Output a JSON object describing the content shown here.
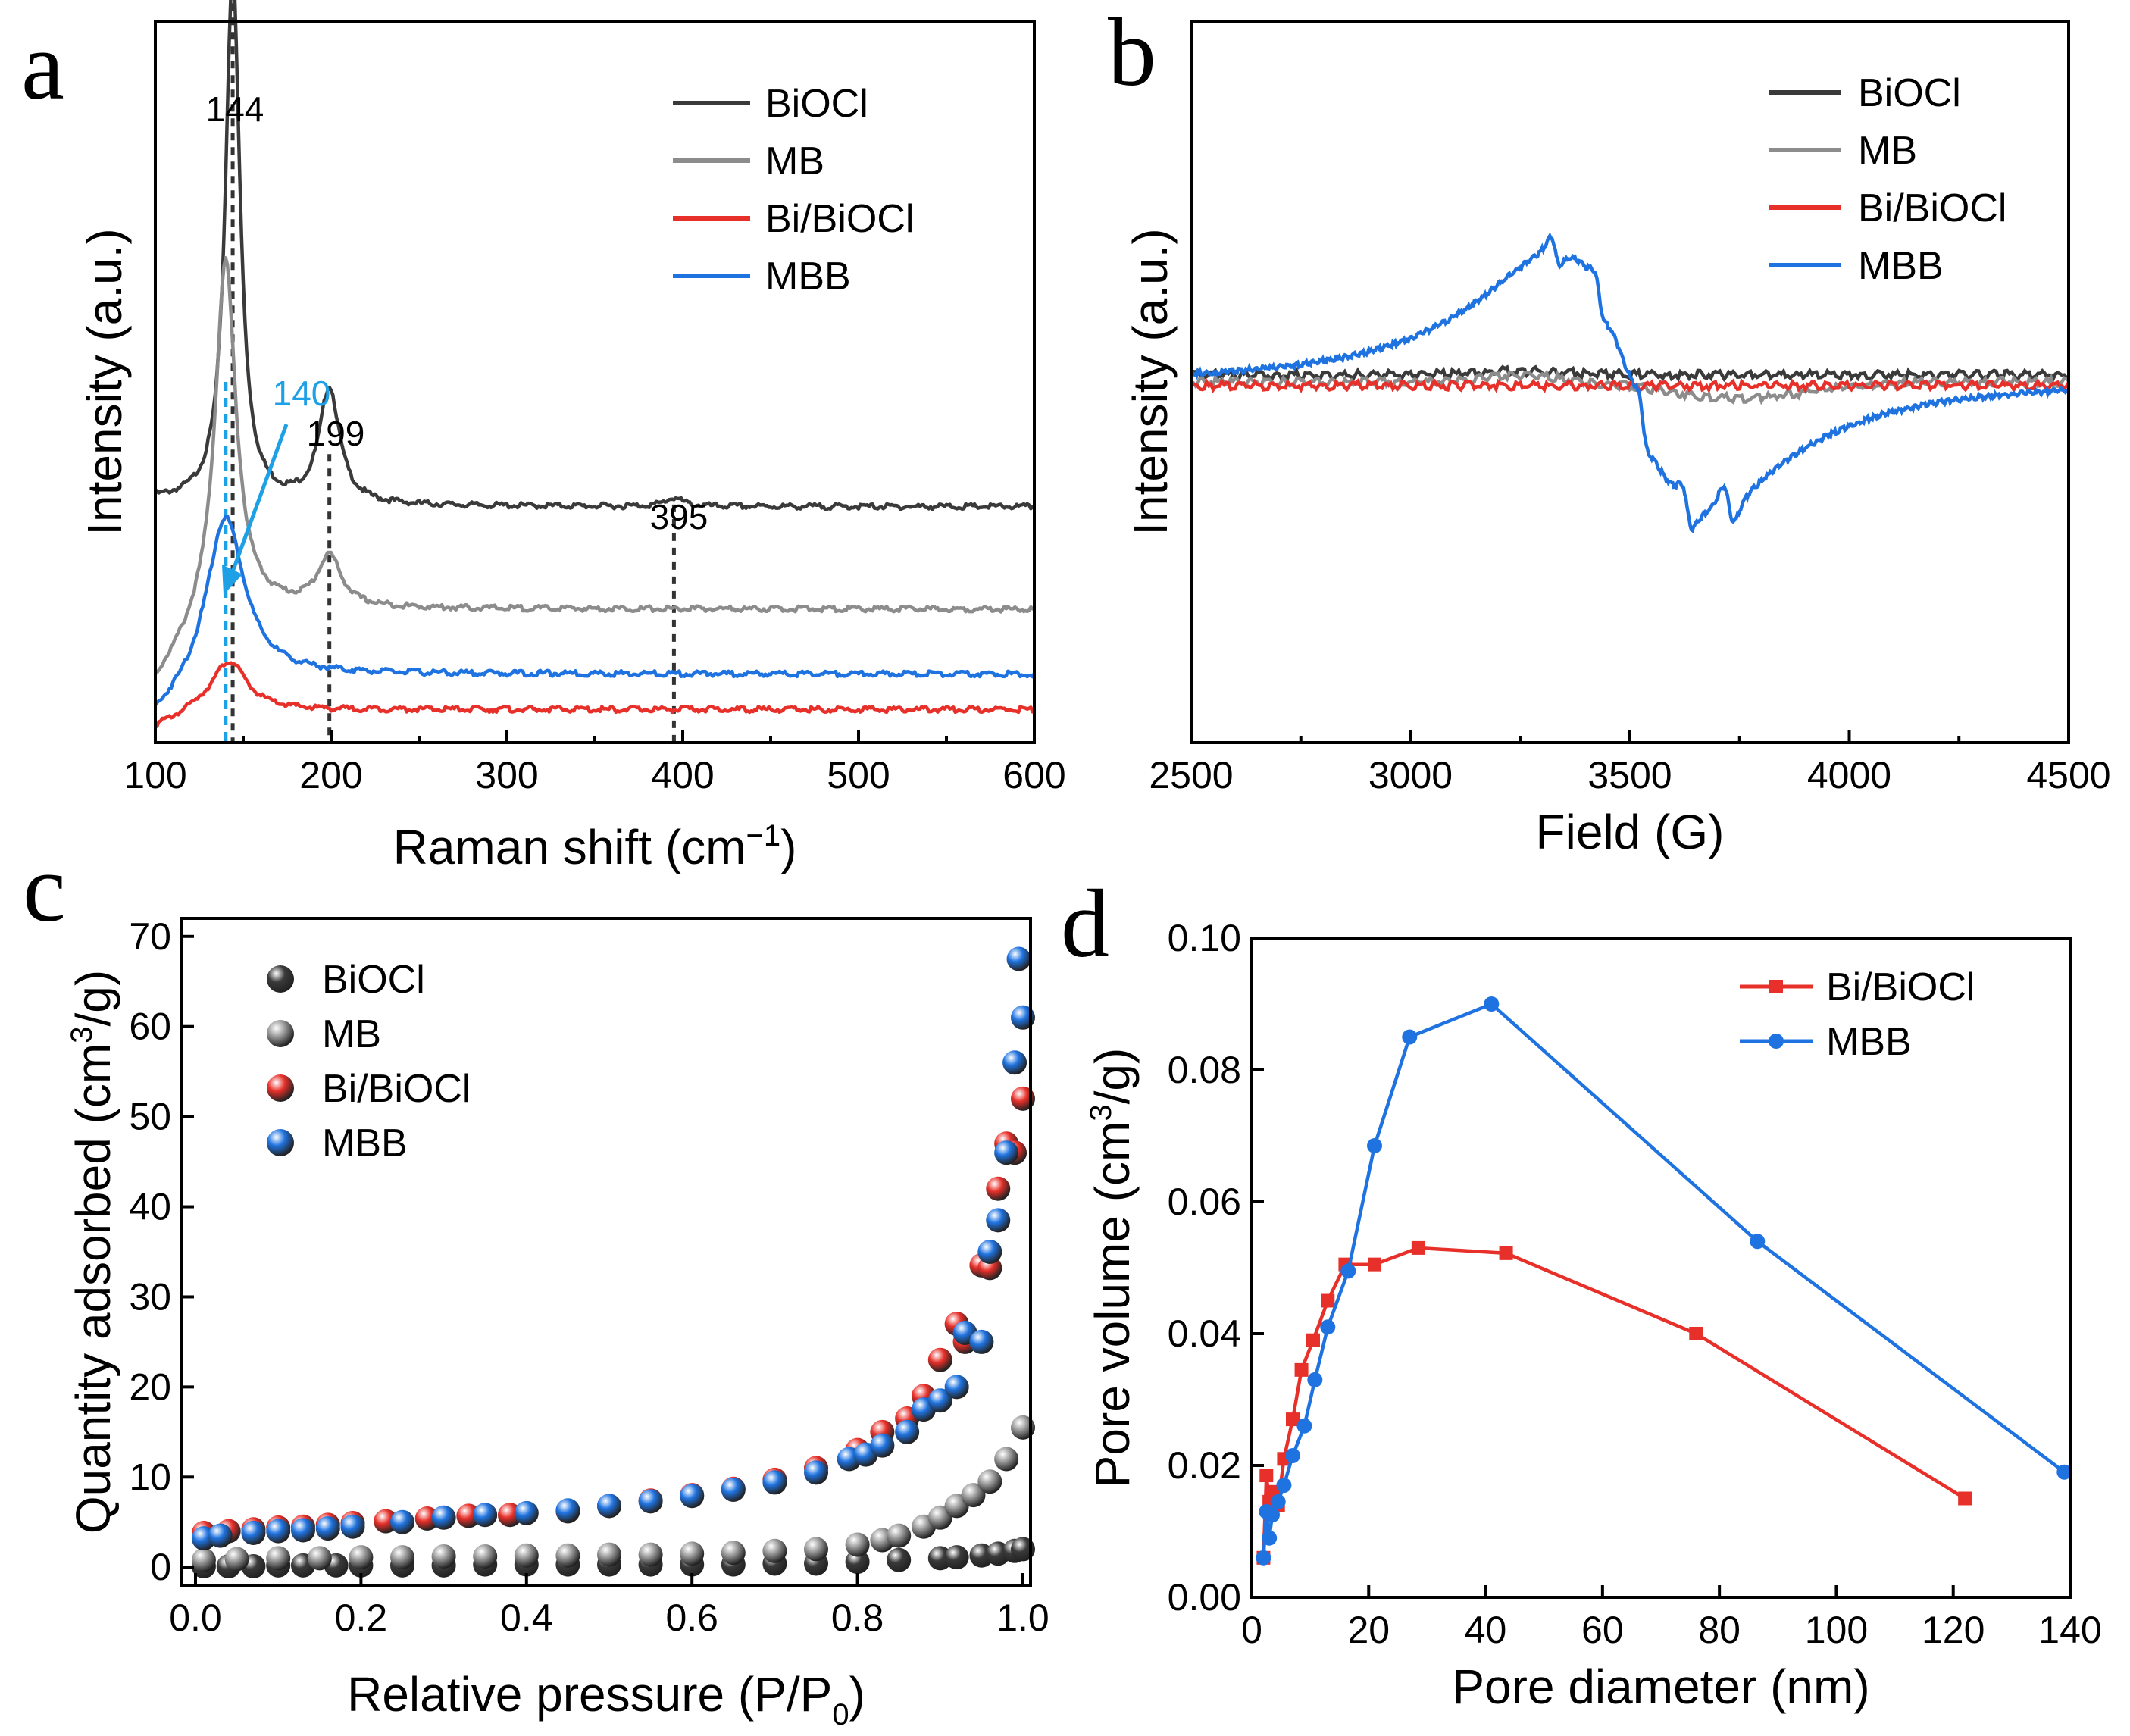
{
  "figure": {
    "panels": [
      "a",
      "b",
      "c",
      "d"
    ]
  },
  "chart_data": [
    {
      "id": "a",
      "type": "line",
      "xlabel": "Raman shift (cm",
      "xlabel_sup": "−1",
      "xlabel_end": ")",
      "ylabel": "Intensity (a.u.)",
      "xlim": [
        100,
        600
      ],
      "xticks": [
        100,
        200,
        300,
        400,
        500,
        600
      ],
      "ylim": [
        0,
        1
      ],
      "legend_position": "top-right",
      "series": [
        {
          "name": "BiOCl",
          "color": "#3a3a3a",
          "baseline": 0.335,
          "tail": 0.327,
          "peaks": [
            {
              "x": 144,
              "amp": 0.74,
              "w": 5
            },
            {
              "x": 199,
              "amp": 0.16,
              "w": 7
            },
            {
              "x": 395,
              "amp": 0.012,
              "w": 6
            }
          ]
        },
        {
          "name": "MB",
          "color": "#8c8c8c",
          "baseline": 0.19,
          "tail": 0.185,
          "peaks": [
            {
              "x": 140,
              "amp": 0.48,
              "w": 7
            },
            {
              "x": 199,
              "amp": 0.07,
              "w": 8
            }
          ]
        },
        {
          "name": "Bi/BiOCl",
          "color": "#e8302a",
          "baseline": 0.04,
          "tail": 0.046,
          "peaks": [
            {
              "x": 142,
              "amp": 0.07,
              "w": 12
            }
          ]
        },
        {
          "name": "MBB",
          "color": "#1f73e0",
          "baseline": 0.09,
          "tail": 0.095,
          "peaks": [
            {
              "x": 140,
              "amp": 0.22,
              "w": 13
            }
          ]
        }
      ],
      "annotations": [
        {
          "text": "144",
          "x": 144,
          "color": "#000000"
        },
        {
          "text": "140",
          "x": 140,
          "color": "#1ea0e6"
        },
        {
          "text": "199",
          "x": 199,
          "color": "#000000"
        },
        {
          "text": "395",
          "x": 395,
          "color": "#000000"
        }
      ]
    },
    {
      "id": "b",
      "type": "line",
      "xlabel": "Field (G)",
      "ylabel": "Intensity (a.u.)",
      "xlim": [
        2500,
        4500
      ],
      "xticks": [
        2500,
        3000,
        3500,
        4000,
        4500
      ],
      "ylim": [
        -1,
        1
      ],
      "legend_position": "top-right",
      "series": [
        {
          "name": "BiOCl",
          "color": "#3a3a3a",
          "level": 0.02
        },
        {
          "name": "MB",
          "color": "#8c8c8c",
          "level": 0.0
        },
        {
          "name": "Bi/BiOCl",
          "color": "#e8302a",
          "level": -0.01
        },
        {
          "name": "MBB",
          "color": "#1f73e0",
          "level": 0.0
        }
      ]
    },
    {
      "id": "c",
      "type": "scatter",
      "xlabel": "Relative pressure (P/P",
      "xlabel_sub": "0",
      "xlabel_end": ")",
      "ylabel": "Quantity adsorbed (cm",
      "ylabel_sup": "3",
      "ylabel_end": "/g)",
      "xlim": [
        0.0,
        1.0
      ],
      "xticks": [
        0.0,
        0.2,
        0.4,
        0.6,
        0.8,
        1.0
      ],
      "xtick_labels": [
        "0.0",
        "0.2",
        "0.4",
        "0.6",
        "0.8",
        "1.0"
      ],
      "ylim": [
        -2,
        72
      ],
      "yticks": [
        0,
        10,
        20,
        30,
        40,
        50,
        60,
        70
      ],
      "legend_position": "top-left",
      "series": [
        {
          "name": "BiOCl",
          "color": "#3a3a3a",
          "x": [
            0.01,
            0.04,
            0.07,
            0.1,
            0.13,
            0.17,
            0.2,
            0.25,
            0.3,
            0.35,
            0.4,
            0.45,
            0.5,
            0.55,
            0.6,
            0.65,
            0.7,
            0.75,
            0.8,
            0.85,
            0.9,
            0.92,
            0.95,
            0.97,
            0.99,
            1.0
          ],
          "y": [
            0.1,
            0.1,
            0.1,
            0.2,
            0.2,
            0.2,
            0.2,
            0.2,
            0.2,
            0.3,
            0.3,
            0.3,
            0.3,
            0.3,
            0.3,
            0.3,
            0.4,
            0.4,
            0.6,
            0.8,
            1.0,
            1.1,
            1.3,
            1.5,
            1.8,
            2.0
          ]
        },
        {
          "name": "MB",
          "color": "#9a9a9a",
          "x": [
            0.01,
            0.05,
            0.1,
            0.15,
            0.2,
            0.25,
            0.3,
            0.35,
            0.4,
            0.45,
            0.5,
            0.55,
            0.6,
            0.65,
            0.7,
            0.75,
            0.8,
            0.83,
            0.85,
            0.88,
            0.9,
            0.92,
            0.94,
            0.96,
            0.98,
            1.0
          ],
          "y": [
            0.8,
            0.9,
            1.0,
            1.0,
            1.1,
            1.1,
            1.2,
            1.2,
            1.3,
            1.3,
            1.4,
            1.4,
            1.5,
            1.6,
            1.8,
            2.0,
            2.5,
            3.0,
            3.5,
            4.5,
            5.5,
            6.8,
            8.0,
            9.5,
            12.0,
            15.5
          ]
        },
        {
          "name": "Bi/BiOCl",
          "color": "#e8302a",
          "x": [
            0.01,
            0.04,
            0.07,
            0.1,
            0.13,
            0.16,
            0.19,
            0.23,
            0.28,
            0.33,
            0.38,
            0.45,
            0.5,
            0.55,
            0.6,
            0.65,
            0.7,
            0.75,
            0.8,
            0.83,
            0.86,
            0.88,
            0.9,
            0.92,
            0.93,
            0.95,
            0.96,
            0.97,
            0.98,
            0.99,
            1.0
          ],
          "y": [
            3.8,
            4.0,
            4.2,
            4.4,
            4.5,
            4.7,
            4.9,
            5.1,
            5.4,
            5.7,
            5.8,
            6.2,
            6.8,
            7.4,
            8.0,
            8.7,
            9.7,
            11.0,
            13.0,
            15.0,
            16.5,
            19.0,
            23.0,
            27.0,
            25.0,
            33.5,
            33.2,
            42.0,
            47.0,
            46.0,
            52.0
          ]
        },
        {
          "name": "MBB",
          "color": "#1f73e0",
          "x": [
            0.01,
            0.03,
            0.07,
            0.1,
            0.13,
            0.16,
            0.19,
            0.25,
            0.3,
            0.35,
            0.4,
            0.45,
            0.5,
            0.55,
            0.6,
            0.65,
            0.7,
            0.75,
            0.79,
            0.81,
            0.83,
            0.86,
            0.88,
            0.9,
            0.92,
            0.93,
            0.95,
            0.96,
            0.97,
            0.98,
            0.99,
            1.0
          ],
          "y": [
            3.2,
            3.5,
            3.8,
            4.0,
            4.1,
            4.3,
            4.5,
            5.0,
            5.5,
            5.8,
            6.0,
            6.3,
            6.8,
            7.3,
            7.9,
            8.6,
            9.4,
            10.5,
            12.0,
            12.5,
            13.5,
            15.0,
            17.5,
            18.5,
            20.0,
            26.0,
            25.0,
            35.0,
            38.5,
            46.0,
            56.0,
            61.0
          ]
        }
      ],
      "extra_point": {
        "x": 0.995,
        "y": 67.5,
        "color": "#1f73e0"
      }
    },
    {
      "id": "d",
      "type": "line",
      "xlabel": "Pore diameter (nm)",
      "ylabel": "Pore volume (cm",
      "ylabel_sup": "3",
      "ylabel_end": "/g)",
      "xlim": [
        0,
        140
      ],
      "xticks": [
        0,
        20,
        40,
        60,
        80,
        100,
        120,
        140
      ],
      "ylim": [
        0.0,
        0.1
      ],
      "yticks": [
        0.0,
        0.02,
        0.04,
        0.06,
        0.08,
        0.1
      ],
      "ytick_labels": [
        "0.00",
        "0.02",
        "0.04",
        "0.06",
        "0.08",
        "0.10"
      ],
      "legend_position": "top-right",
      "series": [
        {
          "name": "Bi/BiOCl",
          "color": "#e8302a",
          "marker": "square",
          "x": [
            2.0,
            2.5,
            3.0,
            3.8,
            4.5,
            5.5,
            7.0,
            8.5,
            10.5,
            13.0,
            16.0,
            21.0,
            28.5,
            43.5,
            76.0,
            122.0
          ],
          "y": [
            0.006,
            0.0185,
            0.0145,
            0.016,
            0.014,
            0.021,
            0.027,
            0.0345,
            0.039,
            0.045,
            0.0505,
            0.0505,
            0.053,
            0.0522,
            0.04,
            0.015
          ]
        },
        {
          "name": "MBB",
          "color": "#1f73e0",
          "marker": "circle",
          "x": [
            2.0,
            2.5,
            3.0,
            3.5,
            4.5,
            5.5,
            7.0,
            9.0,
            10.8,
            13.0,
            16.5,
            21.0,
            27.0,
            41.0,
            86.5,
            139.0
          ],
          "y": [
            0.006,
            0.013,
            0.009,
            0.0125,
            0.0145,
            0.017,
            0.0215,
            0.026,
            0.033,
            0.041,
            0.0495,
            0.0685,
            0.085,
            0.09,
            0.054,
            0.019
          ]
        }
      ]
    }
  ]
}
